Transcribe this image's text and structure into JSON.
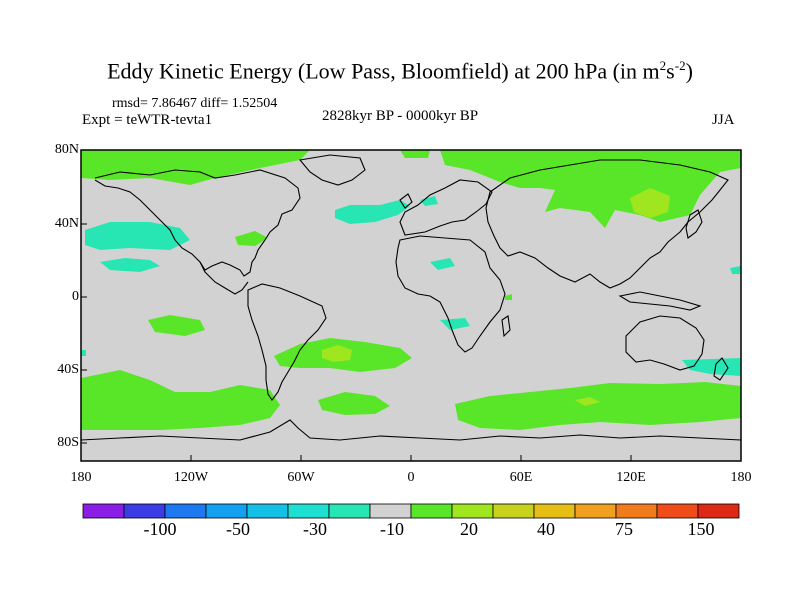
{
  "title": {
    "main": "Eddy Kinetic Energy (Low Pass, Bloomfield) at 200 hPa (in m",
    "sup1": "2",
    "mid": "s",
    "sup2": "-2",
    "end": ")"
  },
  "stats": "rmsd= 7.86467 diff= 1.52504",
  "experiment": "Expt = teWTR-tevta1",
  "period": "2828kyr BP - 0000kyr BP",
  "season": "JJA",
  "lat_ticks": [
    "80N",
    "40N",
    "0",
    "40S",
    "80S"
  ],
  "lon_ticks": [
    "180",
    "120W",
    "60W",
    "0",
    "60E",
    "120E",
    "180"
  ],
  "colorbar": {
    "labels": [
      "-100",
      "-50",
      "-30",
      "-10",
      "20",
      "40",
      "75",
      "150"
    ],
    "colors": [
      "#8a1ee6",
      "#3c3ce6",
      "#1e78f0",
      "#14a0f0",
      "#14c0e6",
      "#1ee0d2",
      "#28e6b4",
      "#d2d2d2",
      "#5ae628",
      "#a0e61e",
      "#c8d21e",
      "#e6be14",
      "#f0a01e",
      "#f07c1e",
      "#f04c1a",
      "#dc2814"
    ]
  },
  "map_colors": {
    "background": "#d2d2d2",
    "positive": "#5ae628",
    "positive_strong": "#a0e61e",
    "negative": "#28e6b4",
    "coast": "#000000"
  }
}
